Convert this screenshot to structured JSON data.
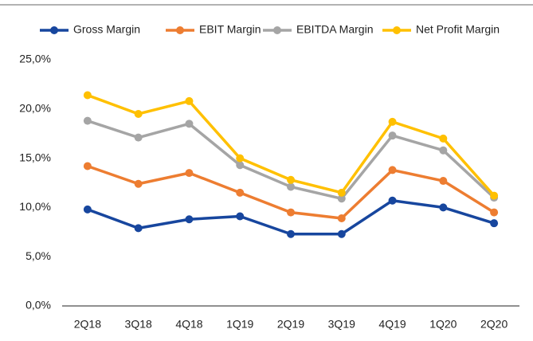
{
  "chart_data": {
    "type": "line",
    "categories": [
      "2Q18",
      "3Q18",
      "4Q18",
      "1Q19",
      "2Q19",
      "3Q19",
      "4Q19",
      "1Q20",
      "2Q20"
    ],
    "series": [
      {
        "name": "Gross Margin",
        "color": "#17469e",
        "values": [
          9.8,
          7.9,
          8.8,
          9.1,
          7.3,
          7.3,
          10.7,
          10.0,
          8.4
        ]
      },
      {
        "name": "EBIT Margin",
        "color": "#ed7d31",
        "values": [
          14.2,
          12.4,
          13.5,
          11.5,
          9.5,
          8.9,
          13.8,
          12.7,
          9.5
        ]
      },
      {
        "name": "EBITDA Margin",
        "color": "#a5a5a5",
        "values": [
          18.8,
          17.1,
          18.5,
          14.3,
          12.1,
          10.9,
          17.3,
          15.8,
          11.0
        ]
      },
      {
        "name": "Net Profit Margin",
        "color": "#ffc000",
        "values": [
          21.4,
          19.5,
          20.8,
          15.0,
          12.8,
          11.5,
          18.7,
          17.0,
          11.2
        ]
      }
    ],
    "ylim": [
      0,
      25
    ],
    "yticks": [
      {
        "value": 0,
        "label": "0,0%"
      },
      {
        "value": 5,
        "label": "5,0%"
      },
      {
        "value": 10,
        "label": "10,0%"
      },
      {
        "value": 15,
        "label": "15,0%"
      },
      {
        "value": 20,
        "label": "20,0%"
      },
      {
        "value": 25,
        "label": "25,0%"
      }
    ],
    "grid": false,
    "legend": "top"
  }
}
